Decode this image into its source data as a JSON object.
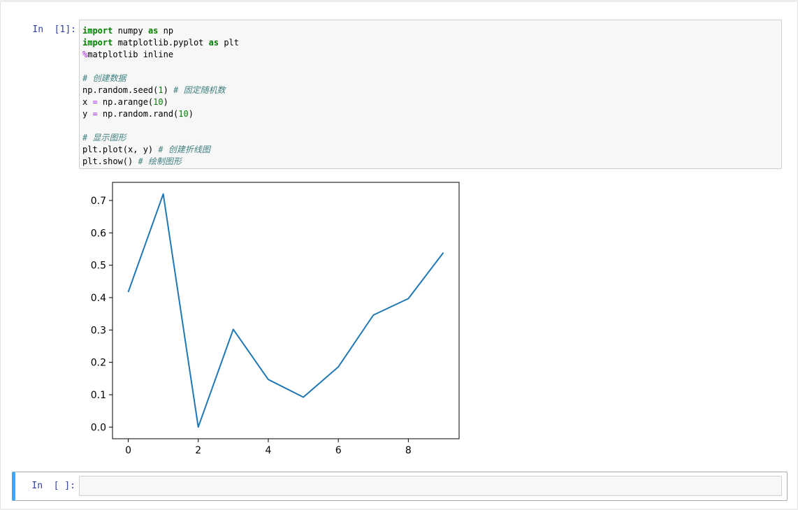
{
  "cells": [
    {
      "prompt": "In  [1]:",
      "code": [
        [
          {
            "t": "import",
            "c": "kw"
          },
          {
            "t": " numpy "
          },
          {
            "t": "as",
            "c": "kw"
          },
          {
            "t": " np"
          }
        ],
        [
          {
            "t": "import",
            "c": "kw"
          },
          {
            "t": " matplotlib.pyplot "
          },
          {
            "t": "as",
            "c": "kw"
          },
          {
            "t": " plt"
          }
        ],
        [
          {
            "t": "%",
            "c": "mg"
          },
          {
            "t": "matplotlib inline"
          }
        ],
        [],
        [
          {
            "t": "# 创建数据",
            "c": "cm"
          }
        ],
        [
          {
            "t": "np.random.seed("
          },
          {
            "t": "1",
            "c": "num"
          },
          {
            "t": ") "
          },
          {
            "t": "# 固定随机数",
            "c": "cm"
          }
        ],
        [
          {
            "t": "x "
          },
          {
            "t": "=",
            "c": "op"
          },
          {
            "t": " np.arange("
          },
          {
            "t": "10",
            "c": "num"
          },
          {
            "t": ")"
          }
        ],
        [
          {
            "t": "y "
          },
          {
            "t": "=",
            "c": "op"
          },
          {
            "t": " np.random.rand("
          },
          {
            "t": "10",
            "c": "num"
          },
          {
            "t": ")"
          }
        ],
        [],
        [
          {
            "t": "# 显示图形",
            "c": "cm"
          }
        ],
        [
          {
            "t": "plt.plot(x, y) "
          },
          {
            "t": "# 创建折线图",
            "c": "cm"
          }
        ],
        [
          {
            "t": "plt.show() "
          },
          {
            "t": "# 绘制图形",
            "c": "cm"
          }
        ]
      ]
    },
    {
      "prompt": "In  [ ]:"
    }
  ],
  "chart_data": {
    "type": "line",
    "x": [
      0,
      1,
      2,
      3,
      4,
      5,
      6,
      7,
      8,
      9
    ],
    "series": [
      {
        "values": [
          0.417,
          0.72,
          0.000114,
          0.302,
          0.147,
          0.0923,
          0.186,
          0.346,
          0.397,
          0.539
        ],
        "color": "#1f77b4"
      }
    ],
    "xticks": [
      "0",
      "2",
      "4",
      "6",
      "8"
    ],
    "yticks": [
      "0.0",
      "0.1",
      "0.2",
      "0.3",
      "0.4",
      "0.5",
      "0.6",
      "0.7"
    ],
    "xlim": [
      -0.45,
      9.45
    ],
    "ylim": [
      -0.036,
      0.756
    ],
    "title": "",
    "xlabel": "",
    "ylabel": "",
    "grid": false
  }
}
